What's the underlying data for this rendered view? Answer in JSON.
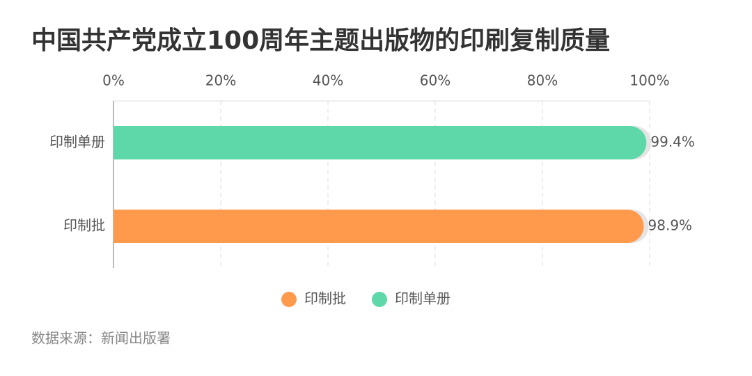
{
  "chart_data": {
    "type": "bar",
    "orientation": "horizontal",
    "title": "中国共产党成立100周年主题出版物的印刷复制质量",
    "categories": [
      "印制单册",
      "印制批"
    ],
    "series": [
      {
        "name": "印制批",
        "color": "#ff9a4d",
        "values": [
          null,
          98.9
        ],
        "value_labels": [
          null,
          "98.9%"
        ]
      },
      {
        "name": "印制单册",
        "color": "#5fd8a9",
        "values": [
          99.4,
          null
        ],
        "value_labels": [
          "99.4%",
          null
        ]
      }
    ],
    "xlim": [
      0,
      100
    ],
    "xticks": [
      {
        "value": 0,
        "label": "0%"
      },
      {
        "value": 20,
        "label": "20%"
      },
      {
        "value": 40,
        "label": "40%"
      },
      {
        "value": 60,
        "label": "60%"
      },
      {
        "value": 80,
        "label": "80%"
      },
      {
        "value": 100,
        "label": "100%"
      }
    ],
    "grid": true,
    "legend": "bottom",
    "source": "数据来源：新闻出版署"
  }
}
